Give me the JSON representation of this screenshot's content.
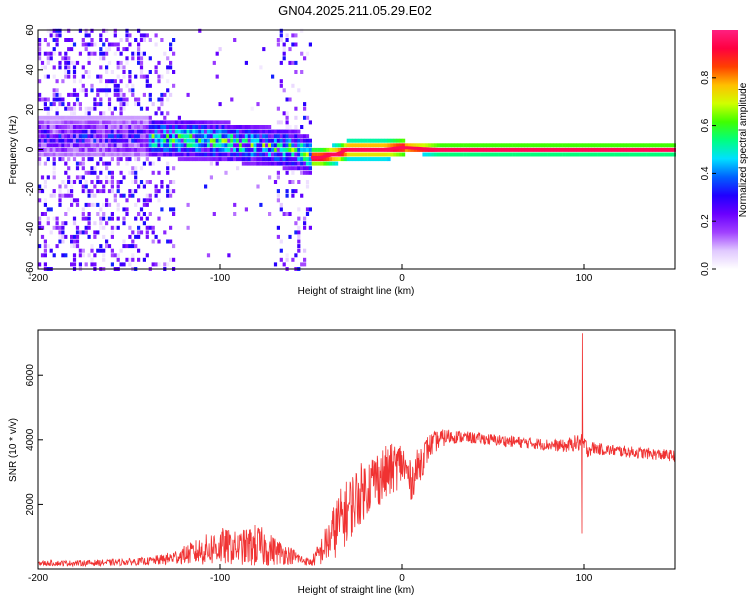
{
  "title": "GN04.2025.211.05.29.E02",
  "chart_data": [
    {
      "type": "heatmap",
      "xlabel": "Height of straight line (km)",
      "ylabel": "Frequency (Hz)",
      "xlim": [
        -200,
        150
      ],
      "ylim": [
        -60,
        60
      ],
      "xticks": [
        -200,
        -100,
        0,
        100
      ],
      "yticks": [
        -60,
        -40,
        -20,
        0,
        20,
        40,
        60
      ],
      "colorbar": {
        "label": "Normalized spectral amplitude",
        "range": [
          0,
          1
        ],
        "ticks": [
          0.0,
          0.2,
          0.4,
          0.6,
          0.8
        ],
        "colormap": [
          "#ffffff",
          "#e0c8ff",
          "#a040ff",
          "#6a00ff",
          "#2000ff",
          "#0060ff",
          "#00e0ff",
          "#00ff80",
          "#40ff00",
          "#d0ff00",
          "#ffc000",
          "#ff4000",
          "#ff0040",
          "#ff2080"
        ]
      },
      "ridge": {
        "x": [
          -140,
          -120,
          -100,
          -80,
          -60,
          -50,
          -45,
          -40,
          -35,
          -30,
          -20,
          -10,
          0,
          20,
          50,
          90,
          100,
          130,
          150
        ],
        "y": [
          6,
          5,
          4,
          2,
          0,
          -4,
          -4,
          -3,
          -2,
          0,
          0,
          0,
          1,
          0,
          0,
          0,
          0,
          0,
          0
        ]
      }
    },
    {
      "type": "line",
      "xlabel": "Height of straight line (km)",
      "ylabel": "SNR (10 * v/v)",
      "xlim": [
        -200,
        150
      ],
      "ylim": [
        0,
        7400
      ],
      "xticks": [
        -200,
        -100,
        0,
        100
      ],
      "yticks": [
        2000,
        4000,
        6000
      ],
      "color": "#f03232",
      "envelope": {
        "x": [
          -200,
          -180,
          -160,
          -140,
          -130,
          -120,
          -110,
          -100,
          -90,
          -80,
          -70,
          -60,
          -55,
          -50,
          -45,
          -40,
          -35,
          -30,
          -25,
          -20,
          -15,
          -10,
          -5,
          0,
          5,
          10,
          15,
          20,
          25,
          30,
          40,
          50,
          60,
          70,
          80,
          90,
          95,
          98,
          100,
          102,
          105,
          110,
          120,
          130,
          140,
          150
        ],
        "mean": [
          180,
          180,
          200,
          240,
          300,
          430,
          560,
          700,
          650,
          720,
          560,
          400,
          280,
          200,
          500,
          900,
          1400,
          1800,
          2200,
          2500,
          2800,
          2900,
          3100,
          3300,
          2700,
          3300,
          3800,
          4000,
          4100,
          4100,
          4050,
          4000,
          3950,
          3900,
          3850,
          3800,
          3900,
          3900,
          3850,
          3700,
          3750,
          3700,
          3650,
          3600,
          3550,
          3500
        ],
        "amp": [
          80,
          90,
          100,
          120,
          180,
          280,
          450,
          600,
          500,
          700,
          450,
          250,
          150,
          120,
          400,
          700,
          1000,
          1000,
          1000,
          900,
          900,
          900,
          800,
          700,
          600,
          600,
          400,
          300,
          250,
          200,
          180,
          180,
          180,
          180,
          180,
          200,
          250,
          300,
          300,
          250,
          200,
          180,
          180,
          180,
          180,
          180
        ]
      },
      "spike": {
        "x": 99,
        "max": 7300,
        "min": 1100
      }
    }
  ]
}
